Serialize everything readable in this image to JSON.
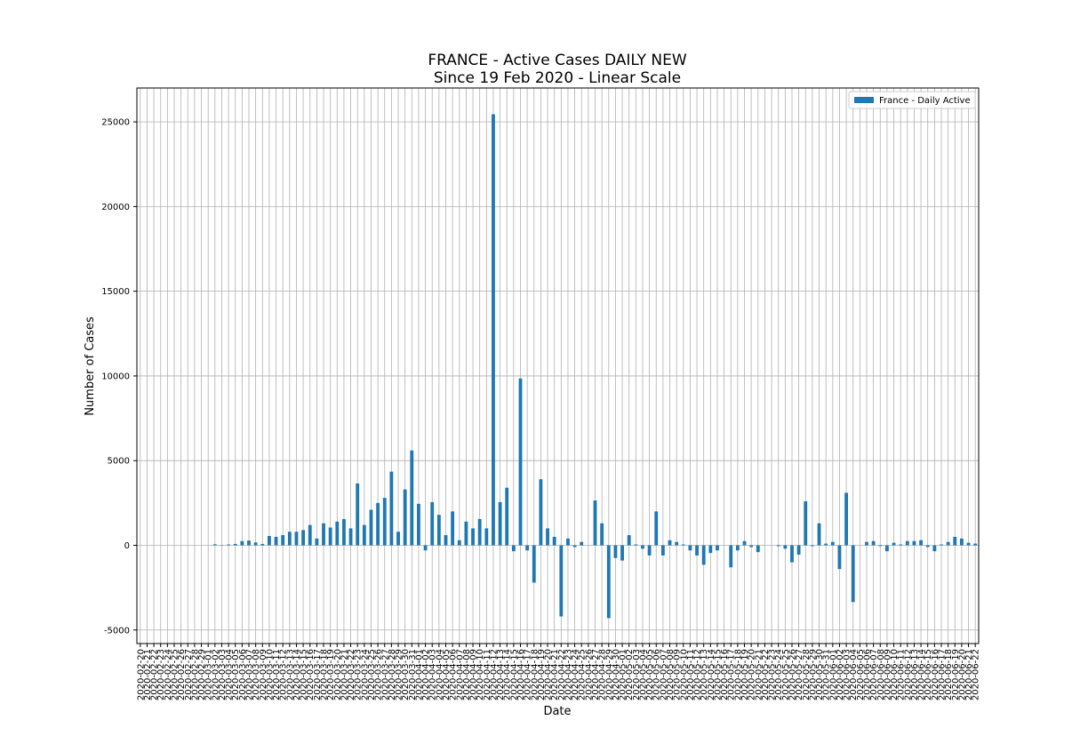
{
  "chart_data": {
    "type": "bar",
    "title": "FRANCE - Active Cases DAILY NEW",
    "subtitle": "Since 19 Feb 2020 - Linear Scale",
    "xlabel": "Date",
    "ylabel": "Number of Cases",
    "ylim": [
      -5800,
      27000
    ],
    "yticks": [
      -5000,
      0,
      5000,
      10000,
      15000,
      20000,
      25000
    ],
    "grid": true,
    "legend_position": "top-right",
    "bar_color": "#1f77b4",
    "series": [
      {
        "name": "France - Daily Active",
        "points": [
          [
            "2020-02-20",
            0
          ],
          [
            "2020-02-21",
            0
          ],
          [
            "2020-02-22",
            0
          ],
          [
            "2020-02-23",
            0
          ],
          [
            "2020-02-24",
            0
          ],
          [
            "2020-02-25",
            0
          ],
          [
            "2020-02-26",
            0
          ],
          [
            "2020-02-27",
            0
          ],
          [
            "2020-02-28",
            0
          ],
          [
            "2020-02-29",
            0
          ],
          [
            "2020-03-01",
            0
          ],
          [
            "2020-03-02",
            60
          ],
          [
            "2020-03-03",
            20
          ],
          [
            "2020-03-04",
            50
          ],
          [
            "2020-03-05",
            80
          ],
          [
            "2020-03-06",
            250
          ],
          [
            "2020-03-07",
            280
          ],
          [
            "2020-03-08",
            170
          ],
          [
            "2020-03-09",
            80
          ],
          [
            "2020-03-10",
            550
          ],
          [
            "2020-03-11",
            500
          ],
          [
            "2020-03-12",
            600
          ],
          [
            "2020-03-13",
            800
          ],
          [
            "2020-03-14",
            800
          ],
          [
            "2020-03-15",
            900
          ],
          [
            "2020-03-16",
            1200
          ],
          [
            "2020-03-17",
            400
          ],
          [
            "2020-03-18",
            1300
          ],
          [
            "2020-03-19",
            1050
          ],
          [
            "2020-03-20",
            1400
          ],
          [
            "2020-03-21",
            1550
          ],
          [
            "2020-03-22",
            1000
          ],
          [
            "2020-03-23",
            3650
          ],
          [
            "2020-03-24",
            1200
          ],
          [
            "2020-03-25",
            2100
          ],
          [
            "2020-03-26",
            2500
          ],
          [
            "2020-03-27",
            2800
          ],
          [
            "2020-03-28",
            4350
          ],
          [
            "2020-03-29",
            800
          ],
          [
            "2020-03-30",
            3300
          ],
          [
            "2020-03-31",
            5600
          ],
          [
            "2020-04-01",
            2450
          ],
          [
            "2020-04-02",
            -300
          ],
          [
            "2020-04-03",
            2550
          ],
          [
            "2020-04-04",
            1800
          ],
          [
            "2020-04-05",
            600
          ],
          [
            "2020-04-06",
            2000
          ],
          [
            "2020-04-07",
            300
          ],
          [
            "2020-04-08",
            1400
          ],
          [
            "2020-04-09",
            1000
          ],
          [
            "2020-04-10",
            1550
          ],
          [
            "2020-04-11",
            1000
          ],
          [
            "2020-04-12",
            25450
          ],
          [
            "2020-04-13",
            2550
          ],
          [
            "2020-04-14",
            3400
          ],
          [
            "2020-04-15",
            -350
          ],
          [
            "2020-04-16",
            9850
          ],
          [
            "2020-04-17",
            -300
          ],
          [
            "2020-04-18",
            -2200
          ],
          [
            "2020-04-19",
            3900
          ],
          [
            "2020-04-20",
            1000
          ],
          [
            "2020-04-21",
            500
          ],
          [
            "2020-04-22",
            -4200
          ],
          [
            "2020-04-23",
            400
          ],
          [
            "2020-04-24",
            -100
          ],
          [
            "2020-04-25",
            200
          ],
          [
            "2020-04-26",
            0
          ],
          [
            "2020-04-27",
            2650
          ],
          [
            "2020-04-28",
            1300
          ],
          [
            "2020-04-29",
            -4300
          ],
          [
            "2020-04-30",
            -750
          ],
          [
            "2020-05-01",
            -900
          ],
          [
            "2020-05-02",
            600
          ],
          [
            "2020-05-03",
            50
          ],
          [
            "2020-05-04",
            -200
          ],
          [
            "2020-05-05",
            -600
          ],
          [
            "2020-05-06",
            2000
          ],
          [
            "2020-05-07",
            -600
          ],
          [
            "2020-05-08",
            300
          ],
          [
            "2020-05-09",
            200
          ],
          [
            "2020-05-10",
            50
          ],
          [
            "2020-05-11",
            -300
          ],
          [
            "2020-05-12",
            -600
          ],
          [
            "2020-05-13",
            -1150
          ],
          [
            "2020-05-14",
            -450
          ],
          [
            "2020-05-15",
            -300
          ],
          [
            "2020-05-16",
            0
          ],
          [
            "2020-05-17",
            -1300
          ],
          [
            "2020-05-18",
            -300
          ],
          [
            "2020-05-19",
            250
          ],
          [
            "2020-05-20",
            -100
          ],
          [
            "2020-05-21",
            -400
          ],
          [
            "2020-05-22",
            0
          ],
          [
            "2020-05-23",
            0
          ],
          [
            "2020-05-24",
            -50
          ],
          [
            "2020-05-25",
            -200
          ],
          [
            "2020-05-26",
            -1000
          ],
          [
            "2020-05-27",
            -550
          ],
          [
            "2020-05-28",
            2600
          ],
          [
            "2020-05-29",
            -50
          ],
          [
            "2020-05-30",
            1300
          ],
          [
            "2020-05-31",
            100
          ],
          [
            "2020-06-01",
            200
          ],
          [
            "2020-06-02",
            -1400
          ],
          [
            "2020-06-03",
            3100
          ],
          [
            "2020-06-04",
            -3350
          ],
          [
            "2020-06-05",
            0
          ],
          [
            "2020-06-06",
            200
          ],
          [
            "2020-06-07",
            250
          ],
          [
            "2020-06-08",
            -50
          ],
          [
            "2020-06-09",
            -350
          ],
          [
            "2020-06-10",
            150
          ],
          [
            "2020-06-11",
            50
          ],
          [
            "2020-06-12",
            250
          ],
          [
            "2020-06-13",
            250
          ],
          [
            "2020-06-14",
            300
          ],
          [
            "2020-06-15",
            -100
          ],
          [
            "2020-06-16",
            -350
          ],
          [
            "2020-06-17",
            50
          ],
          [
            "2020-06-18",
            200
          ],
          [
            "2020-06-19",
            500
          ],
          [
            "2020-06-20",
            400
          ],
          [
            "2020-06-21",
            150
          ],
          [
            "2020-06-22",
            100
          ]
        ]
      }
    ]
  }
}
